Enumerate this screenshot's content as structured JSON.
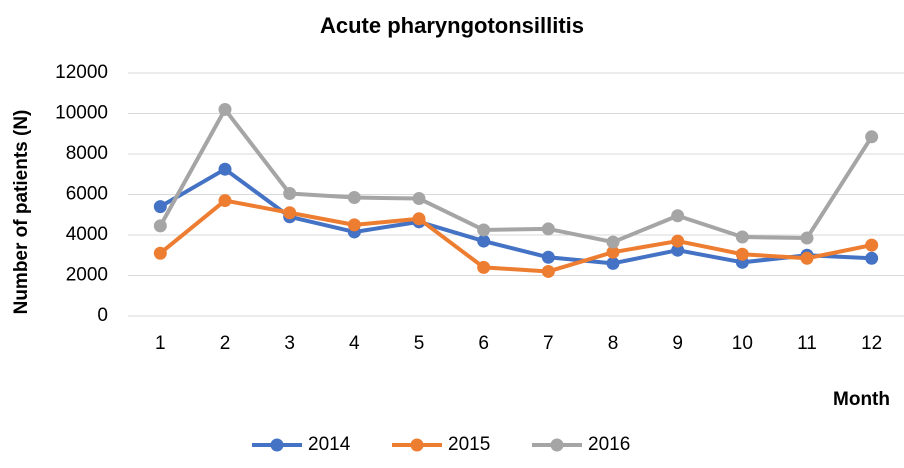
{
  "chart_data": {
    "type": "line",
    "title": "Acute pharyngotonsillitis",
    "x_label": "Month",
    "y_label": "Number of patients (N)",
    "categories": [
      "1",
      "2",
      "3",
      "4",
      "5",
      "6",
      "7",
      "8",
      "9",
      "10",
      "11",
      "12"
    ],
    "series": [
      {
        "name": "2014",
        "color": "#4472c4",
        "values": [
          5400,
          7250,
          4900,
          4150,
          4650,
          3700,
          2900,
          2600,
          3250,
          2650,
          3000,
          2850
        ]
      },
      {
        "name": "2015",
        "color": "#ed7d31",
        "values": [
          3100,
          5700,
          5100,
          4500,
          4800,
          2400,
          2200,
          3150,
          3700,
          3050,
          2850,
          3500
        ]
      },
      {
        "name": "2016",
        "color": "#a5a5a5",
        "values": [
          4450,
          10200,
          6050,
          5850,
          5800,
          4250,
          4300,
          3650,
          4950,
          3900,
          3850,
          8850
        ]
      }
    ],
    "ylim": [
      0,
      12000
    ],
    "yticks": [
      0,
      2000,
      4000,
      6000,
      8000,
      10000,
      12000
    ],
    "grid": true,
    "legend": "bottom"
  }
}
